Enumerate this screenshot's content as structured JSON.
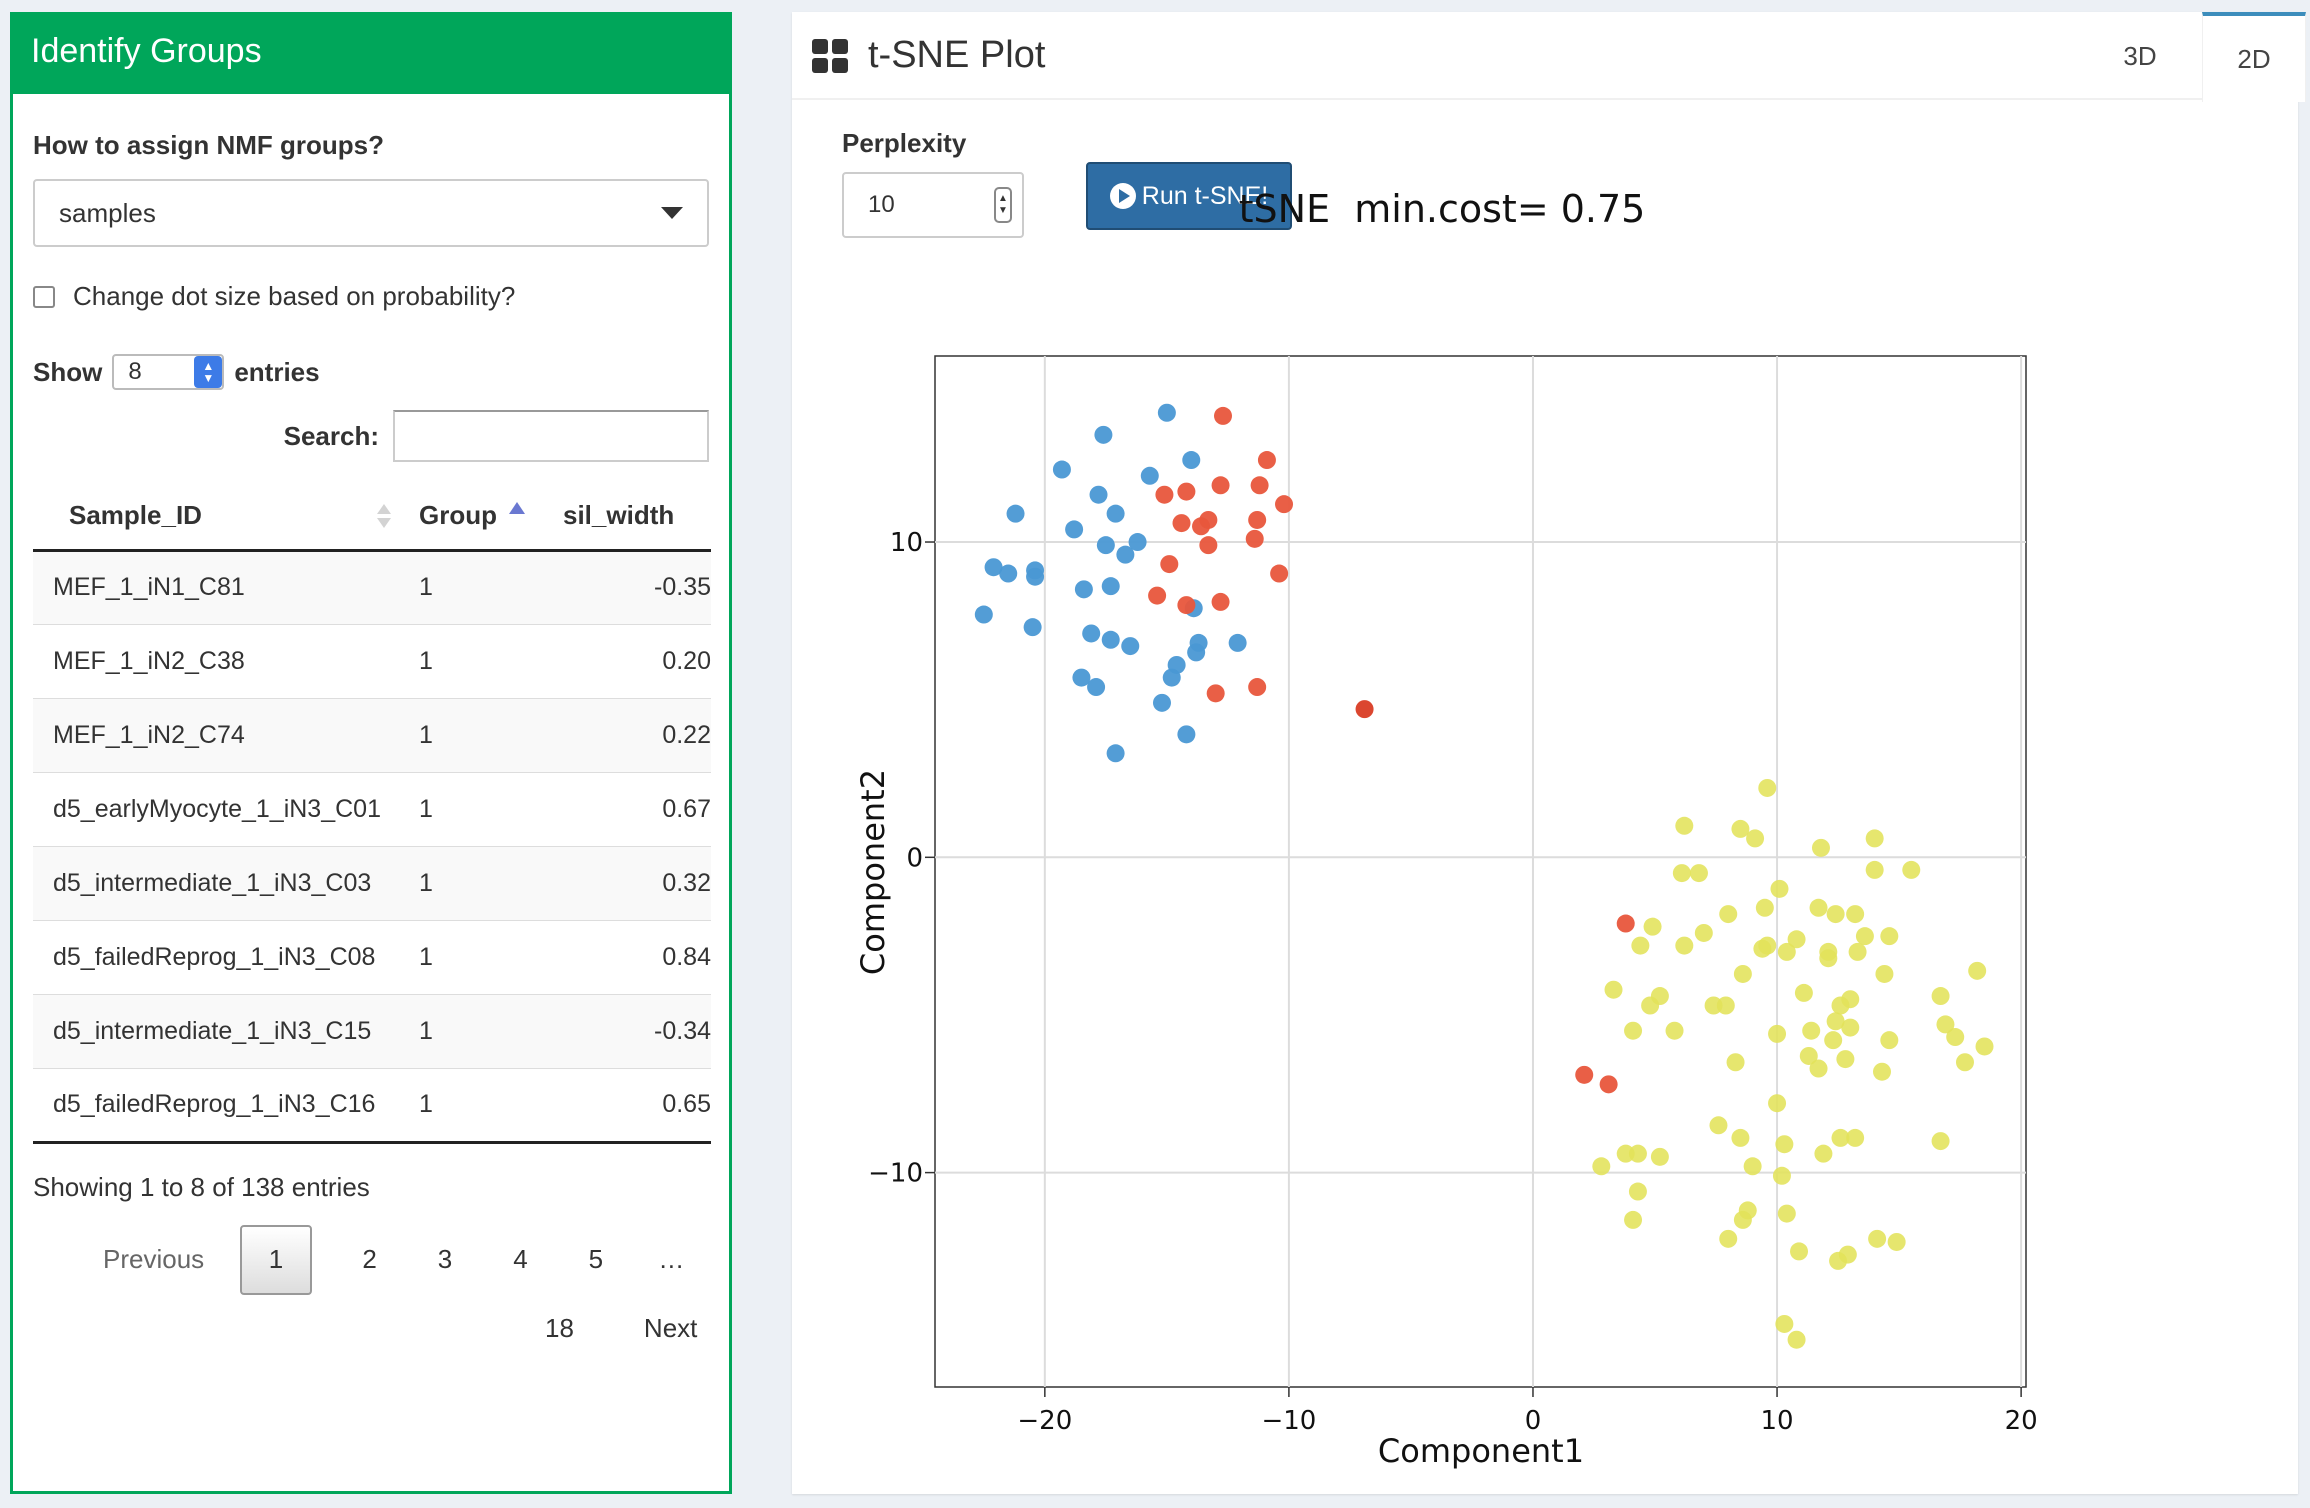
{
  "left_panel": {
    "title": "Identify Groups",
    "assign_label": "How to assign NMF groups?",
    "assign_value": "samples",
    "dot_size_label": "Change dot size based on probability?",
    "show_label": "Show",
    "show_value": "8",
    "entries_label": "entries",
    "search_label": "Search:",
    "table": {
      "headers": [
        "Sample_ID",
        "Group",
        "sil_width"
      ],
      "rows": [
        [
          "MEF_1_iN1_C81",
          "1",
          "-0.35"
        ],
        [
          "MEF_1_iN2_C38",
          "1",
          "0.20"
        ],
        [
          "MEF_1_iN2_C74",
          "1",
          "0.22"
        ],
        [
          "d5_earlyMyocyte_1_iN3_C01",
          "1",
          "0.67"
        ],
        [
          "d5_intermediate_1_iN3_C03",
          "1",
          "0.32"
        ],
        [
          "d5_failedReprog_1_iN3_C08",
          "1",
          "0.84"
        ],
        [
          "d5_intermediate_1_iN3_C15",
          "1",
          "-0.34"
        ],
        [
          "d5_failedReprog_1_iN3_C16",
          "1",
          "0.65"
        ]
      ]
    },
    "info": "Showing 1 to 8 of 138 entries",
    "pagination": {
      "previous": "Previous",
      "pages": [
        "1",
        "2",
        "3",
        "4",
        "5",
        "…"
      ],
      "last": "18",
      "next": "Next"
    }
  },
  "right_panel": {
    "title": "t-SNE Plot",
    "tabs": [
      "3D",
      "2D"
    ],
    "active_tab": "2D",
    "perplexity_label": "Perplexity",
    "perplexity_value": "10",
    "run_button": "Run t-SNE!"
  },
  "chart_data": {
    "type": "scatter",
    "title": "tSNE  min.cost= 0.75",
    "xlabel": "Component1",
    "ylabel": "Component2",
    "xlim": [
      -24.5,
      20.2
    ],
    "ylim": [
      -16.8,
      15.9
    ],
    "xticks": [
      -20,
      -10,
      0,
      10,
      20
    ],
    "xtick_labels": [
      "−20",
      "−10",
      "0",
      "10",
      "20"
    ],
    "yticks": [
      10,
      0,
      -10
    ],
    "ytick_labels": [
      "10",
      "0",
      "−10"
    ],
    "grid": true,
    "colors": {
      "blue": "#4a98d4",
      "red": "#e8563c",
      "yellow": "#e3e35a",
      "red_outlier": "#d93c24"
    },
    "series": [
      {
        "color_key": "blue",
        "points": [
          [
            -15.0,
            14.1
          ],
          [
            -17.6,
            13.4
          ],
          [
            -14.0,
            12.6
          ],
          [
            -19.3,
            12.3
          ],
          [
            -15.7,
            12.1
          ],
          [
            -17.8,
            11.5
          ],
          [
            -21.2,
            10.9
          ],
          [
            -17.1,
            10.9
          ],
          [
            -18.8,
            10.4
          ],
          [
            -16.2,
            10.0
          ],
          [
            -17.5,
            9.9
          ],
          [
            -16.7,
            9.6
          ],
          [
            -22.1,
            9.2
          ],
          [
            -21.5,
            9.0
          ],
          [
            -20.4,
            9.1
          ],
          [
            -20.4,
            8.9
          ],
          [
            -18.4,
            8.5
          ],
          [
            -17.3,
            8.6
          ],
          [
            -13.9,
            7.9
          ],
          [
            -22.5,
            7.7
          ],
          [
            -20.5,
            7.3
          ],
          [
            -18.1,
            7.1
          ],
          [
            -17.3,
            6.9
          ],
          [
            -16.5,
            6.7
          ],
          [
            -13.7,
            6.8
          ],
          [
            -13.8,
            6.5
          ],
          [
            -12.1,
            6.8
          ],
          [
            -14.6,
            6.1
          ],
          [
            -14.8,
            5.7
          ],
          [
            -18.5,
            5.7
          ],
          [
            -17.9,
            5.4
          ],
          [
            -15.2,
            4.9
          ],
          [
            -14.2,
            3.9
          ],
          [
            -17.1,
            3.3
          ]
        ]
      },
      {
        "color_key": "red",
        "points": [
          [
            -12.7,
            14.0
          ],
          [
            -10.9,
            12.6
          ],
          [
            -14.2,
            11.6
          ],
          [
            -12.8,
            11.8
          ],
          [
            -11.2,
            11.8
          ],
          [
            -15.1,
            11.5
          ],
          [
            -10.2,
            11.2
          ],
          [
            -13.3,
            10.7
          ],
          [
            -14.4,
            10.6
          ],
          [
            -11.3,
            10.7
          ],
          [
            -13.6,
            10.5
          ],
          [
            -11.4,
            10.1
          ],
          [
            -13.3,
            9.9
          ],
          [
            -14.9,
            9.3
          ],
          [
            -10.4,
            9.0
          ],
          [
            -15.4,
            8.3
          ],
          [
            -12.8,
            8.1
          ],
          [
            -14.2,
            8.0
          ],
          [
            -11.3,
            5.4
          ],
          [
            -13.0,
            5.2
          ]
        ]
      },
      {
        "color_key": "red_outlier",
        "points": [
          [
            -6.9,
            4.7
          ]
        ]
      },
      {
        "color_key": "red",
        "points": [
          [
            3.8,
            -2.1
          ],
          [
            2.1,
            -6.9
          ],
          [
            3.1,
            -7.2
          ]
        ]
      },
      {
        "color_key": "yellow",
        "points": [
          [
            9.6,
            2.2
          ],
          [
            6.2,
            1.0
          ],
          [
            8.5,
            0.9
          ],
          [
            9.1,
            0.6
          ],
          [
            14.0,
            0.6
          ],
          [
            11.8,
            0.3
          ],
          [
            6.1,
            -0.5
          ],
          [
            6.8,
            -0.5
          ],
          [
            10.1,
            -1.0
          ],
          [
            14.0,
            -0.4
          ],
          [
            15.5,
            -0.4
          ],
          [
            11.7,
            -1.6
          ],
          [
            12.4,
            -1.8
          ],
          [
            8.0,
            -1.8
          ],
          [
            9.5,
            -1.6
          ],
          [
            13.2,
            -1.8
          ],
          [
            4.9,
            -2.2
          ],
          [
            7.0,
            -2.4
          ],
          [
            9.4,
            -2.9
          ],
          [
            10.8,
            -2.6
          ],
          [
            12.1,
            -3.0
          ],
          [
            13.6,
            -2.5
          ],
          [
            14.6,
            -2.5
          ],
          [
            10.4,
            -3.0
          ],
          [
            6.2,
            -2.8
          ],
          [
            12.1,
            -3.2
          ],
          [
            9.6,
            -2.8
          ],
          [
            4.4,
            -2.8
          ],
          [
            13.3,
            -3.0
          ],
          [
            8.6,
            -3.7
          ],
          [
            14.4,
            -3.7
          ],
          [
            5.2,
            -4.4
          ],
          [
            11.1,
            -4.3
          ],
          [
            13.0,
            -4.5
          ],
          [
            16.7,
            -4.4
          ],
          [
            18.2,
            -3.6
          ],
          [
            3.3,
            -4.2
          ],
          [
            4.8,
            -4.7
          ],
          [
            7.4,
            -4.7
          ],
          [
            7.9,
            -4.7
          ],
          [
            12.6,
            -4.7
          ],
          [
            12.4,
            -5.2
          ],
          [
            16.9,
            -5.3
          ],
          [
            4.1,
            -5.5
          ],
          [
            10.0,
            -5.6
          ],
          [
            5.8,
            -5.5
          ],
          [
            11.4,
            -5.5
          ],
          [
            12.3,
            -5.8
          ],
          [
            17.3,
            -5.7
          ],
          [
            13.0,
            -5.4
          ],
          [
            14.6,
            -5.8
          ],
          [
            18.5,
            -6.0
          ],
          [
            11.3,
            -6.3
          ],
          [
            12.8,
            -6.4
          ],
          [
            11.7,
            -6.7
          ],
          [
            8.3,
            -6.5
          ],
          [
            14.3,
            -6.8
          ],
          [
            17.7,
            -6.5
          ],
          [
            10.0,
            -7.8
          ],
          [
            7.6,
            -8.5
          ],
          [
            8.5,
            -8.9
          ],
          [
            12.6,
            -8.9
          ],
          [
            13.2,
            -8.9
          ],
          [
            10.3,
            -9.1
          ],
          [
            16.7,
            -9.0
          ],
          [
            3.8,
            -9.4
          ],
          [
            4.3,
            -9.4
          ],
          [
            11.9,
            -9.4
          ],
          [
            5.2,
            -9.5
          ],
          [
            2.8,
            -9.8
          ],
          [
            9.0,
            -9.8
          ],
          [
            10.2,
            -10.1
          ],
          [
            4.3,
            -10.6
          ],
          [
            8.8,
            -11.2
          ],
          [
            8.6,
            -11.5
          ],
          [
            10.4,
            -11.3
          ],
          [
            4.1,
            -11.5
          ],
          [
            8.0,
            -12.1
          ],
          [
            14.1,
            -12.1
          ],
          [
            14.9,
            -12.2
          ],
          [
            10.9,
            -12.5
          ],
          [
            12.5,
            -12.8
          ],
          [
            12.9,
            -12.6
          ],
          [
            10.3,
            -14.8
          ],
          [
            10.8,
            -15.3
          ]
        ]
      }
    ]
  }
}
